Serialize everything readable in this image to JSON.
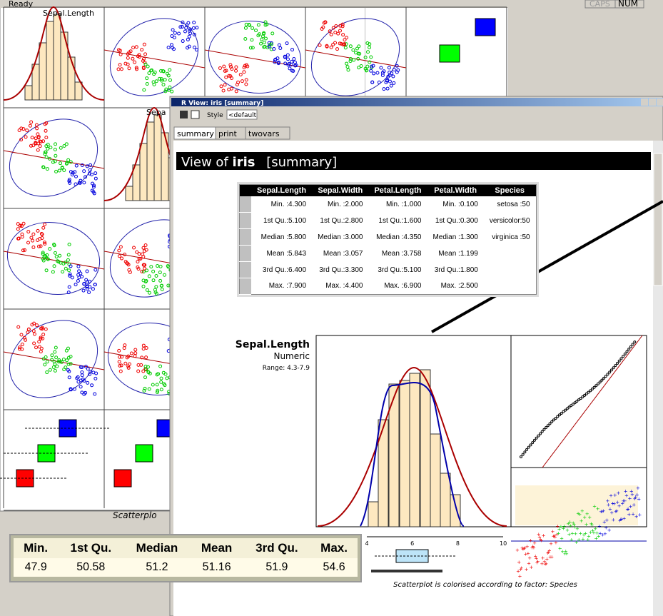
{
  "status": {
    "left": "Ready",
    "caps": "CAPS",
    "num": "NUM"
  },
  "matrix": {
    "labels": [
      "Sepal.Length",
      "Sepa"
    ],
    "caption": "Scatterplo"
  },
  "window": {
    "title": "R View: iris [summary]",
    "style_label": "Style",
    "style_value": "<default",
    "tabs": [
      "summary",
      "print",
      "twovars"
    ]
  },
  "heading": {
    "prefix": "View of",
    "name": "iris",
    "suffix": "[summary]"
  },
  "summary_table": {
    "columns": [
      "Sepal.Length",
      "Sepal.Width",
      "Petal.Length",
      "Petal.Width",
      "Species"
    ],
    "rows": [
      [
        "Min. :4.300",
        "Min. :2.000",
        "Min. :1.000",
        "Min. :0.100",
        "setosa :50"
      ],
      [
        "1st Qu.:5.100",
        "1st Qu.:2.800",
        "1st Qu.:1.600",
        "1st Qu.:0.300",
        "versicolor:50"
      ],
      [
        "Median :5.800",
        "Median :3.000",
        "Median :4.350",
        "Median :1.300",
        "virginica :50"
      ],
      [
        "Mean :5.843",
        "Mean :3.057",
        "Mean :3.758",
        "Mean :1.199"
      ],
      [
        "3rd Qu.:6.400",
        "3rd Qu.:3.300",
        "3rd Qu.:5.100",
        "3rd Qu.:1.800"
      ],
      [
        "Max. :7.900",
        "Max. :4.400",
        "Max. :6.900",
        "Max. :2.500"
      ]
    ]
  },
  "variable": {
    "name": "Sepal.Length",
    "type": "Numeric",
    "range": "Range: 4.3-7.9"
  },
  "axis_labels": [
    "4",
    "6",
    "8",
    "10"
  ],
  "caption": "Scatterplot is colorised according to factor: Species",
  "stats": {
    "columns": [
      "Min.",
      "1st Qu.",
      "Median",
      "Mean",
      "3rd Qu.",
      "Max."
    ],
    "values": [
      47.9,
      50.58,
      51.2,
      51.16,
      51.9,
      54.6
    ]
  }
}
